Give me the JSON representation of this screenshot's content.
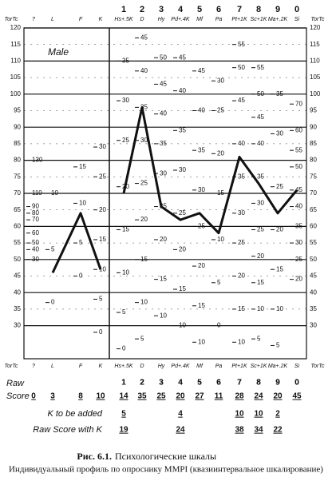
{
  "chart_data": {
    "type": "profile",
    "group": "Male",
    "axis_label": "TorTc",
    "ylim": [
      20,
      120
    ],
    "yticks": [
      30,
      35,
      40,
      45,
      50,
      55,
      60,
      65,
      70,
      75,
      80,
      85,
      90,
      95,
      100,
      105,
      110,
      115,
      120
    ],
    "grid": true,
    "line_color": "#111111",
    "validity": [
      {
        "name": "?",
        "raw": 0,
        "ticks": [
          {
            "raw": 130,
            "t": 80
          },
          {
            "raw": 110,
            "t": 70
          },
          {
            "raw": 90,
            "t": 66
          },
          {
            "raw": 80,
            "t": 64
          },
          {
            "raw": 70,
            "t": 62
          },
          {
            "raw": 60,
            "t": 58
          },
          {
            "raw": 50,
            "t": 55
          },
          {
            "raw": 40,
            "t": 53
          },
          {
            "raw": 30,
            "t": 50
          }
        ]
      },
      {
        "name": "L",
        "raw": 3,
        "t": 46,
        "ticks": [
          {
            "raw": 10,
            "t": 70
          },
          {
            "raw": 5,
            "t": 53
          },
          {
            "raw": 0,
            "t": 37
          }
        ]
      },
      {
        "name": "F",
        "raw": 8,
        "t": 64,
        "ticks": [
          {
            "raw": 15,
            "t": 78
          },
          {
            "raw": 10,
            "t": 67
          },
          {
            "raw": 5,
            "t": 55
          },
          {
            "raw": 0,
            "t": 45
          }
        ]
      },
      {
        "name": "K",
        "raw": 10,
        "t": 47,
        "ticks": [
          {
            "raw": 30,
            "t": 84
          },
          {
            "raw": 25,
            "t": 75
          },
          {
            "raw": 20,
            "t": 65
          },
          {
            "raw": 15,
            "t": 56
          },
          {
            "raw": 10,
            "t": 47
          },
          {
            "raw": 5,
            "t": 38
          },
          {
            "raw": 0,
            "t": 28
          }
        ]
      }
    ],
    "scales": [
      {
        "number": 1,
        "name": "Hs+.5K",
        "raw": 14,
        "k_added": 5,
        "raw_k": 19,
        "t": 70,
        "ticks": [
          {
            "raw": 35,
            "t": 110
          },
          {
            "raw": 30,
            "t": 98
          },
          {
            "raw": 25,
            "t": 86
          },
          {
            "raw": 20,
            "t": 72
          },
          {
            "raw": 15,
            "t": 59
          },
          {
            "raw": 10,
            "t": 46
          },
          {
            "raw": 5,
            "t": 34
          },
          {
            "raw": 0,
            "t": 23
          }
        ]
      },
      {
        "number": 2,
        "name": "D",
        "raw": 35,
        "k_added": null,
        "raw_k": null,
        "t": 96,
        "ticks": [
          {
            "raw": 45,
            "t": 117
          },
          {
            "raw": 40,
            "t": 107
          },
          {
            "raw": 35,
            "t": 96
          },
          {
            "raw": 30,
            "t": 86
          },
          {
            "raw": 25,
            "t": 73
          },
          {
            "raw": 20,
            "t": 62
          },
          {
            "raw": 15,
            "t": 50
          },
          {
            "raw": 10,
            "t": 37
          },
          {
            "raw": 5,
            "t": 26
          }
        ]
      },
      {
        "number": 3,
        "name": "Hy",
        "raw": 25,
        "k_added": null,
        "raw_k": null,
        "t": 66,
        "ticks": [
          {
            "raw": 50,
            "t": 111
          },
          {
            "raw": 45,
            "t": 103
          },
          {
            "raw": 40,
            "t": 94
          },
          {
            "raw": 35,
            "t": 85
          },
          {
            "raw": 30,
            "t": 76
          },
          {
            "raw": 25,
            "t": 66
          },
          {
            "raw": 20,
            "t": 56
          },
          {
            "raw": 15,
            "t": 44
          },
          {
            "raw": 10,
            "t": 33
          }
        ]
      },
      {
        "number": 4,
        "name": "Pd+.4K",
        "raw": 20,
        "k_added": 4,
        "raw_k": 24,
        "t": 62,
        "ticks": [
          {
            "raw": 45,
            "t": 111
          },
          {
            "raw": 40,
            "t": 101
          },
          {
            "raw": 35,
            "t": 89
          },
          {
            "raw": 30,
            "t": 77
          },
          {
            "raw": 25,
            "t": 64
          },
          {
            "raw": 20,
            "t": 53
          },
          {
            "raw": 15,
            "t": 41
          },
          {
            "raw": 10,
            "t": 30
          }
        ]
      },
      {
        "number": 5,
        "name": "Mf",
        "raw": 27,
        "k_added": null,
        "raw_k": null,
        "t": 64,
        "ticks": [
          {
            "raw": 45,
            "t": 107
          },
          {
            "raw": 40,
            "t": 95
          },
          {
            "raw": 35,
            "t": 83
          },
          {
            "raw": 30,
            "t": 71
          },
          {
            "raw": 25,
            "t": 60
          },
          {
            "raw": 20,
            "t": 48
          },
          {
            "raw": 15,
            "t": 36
          },
          {
            "raw": 10,
            "t": 25
          }
        ]
      },
      {
        "number": 6,
        "name": "Pa",
        "raw": 11,
        "k_added": null,
        "raw_k": null,
        "t": 58,
        "ticks": [
          {
            "raw": 30,
            "t": 104
          },
          {
            "raw": 25,
            "t": 95
          },
          {
            "raw": 20,
            "t": 82
          },
          {
            "raw": 15,
            "t": 70
          },
          {
            "raw": 10,
            "t": 56
          },
          {
            "raw": 5,
            "t": 43
          },
          {
            "raw": 0,
            "t": 30
          }
        ]
      },
      {
        "number": 7,
        "name": "Pt+1K",
        "raw": 28,
        "k_added": 10,
        "raw_k": 38,
        "t": 81,
        "ticks": [
          {
            "raw": 55,
            "t": 115
          },
          {
            "raw": 50,
            "t": 108
          },
          {
            "raw": 45,
            "t": 98
          },
          {
            "raw": 40,
            "t": 85
          },
          {
            "raw": 35,
            "t": 75
          },
          {
            "raw": 30,
            "t": 64
          },
          {
            "raw": 25,
            "t": 55
          },
          {
            "raw": 20,
            "t": 45
          },
          {
            "raw": 15,
            "t": 35
          },
          {
            "raw": 10,
            "t": 25
          }
        ]
      },
      {
        "number": 8,
        "name": "Sc+1K",
        "raw": 24,
        "k_added": 10,
        "raw_k": 34,
        "t": 73,
        "ticks": [
          {
            "raw": 55,
            "t": 108
          },
          {
            "raw": 50,
            "t": 100
          },
          {
            "raw": 45,
            "t": 93
          },
          {
            "raw": 40,
            "t": 85
          },
          {
            "raw": 35,
            "t": 75
          },
          {
            "raw": 30,
            "t": 67
          },
          {
            "raw": 25,
            "t": 59
          },
          {
            "raw": 20,
            "t": 51
          },
          {
            "raw": 15,
            "t": 43
          },
          {
            "raw": 10,
            "t": 35
          },
          {
            "raw": 5,
            "t": 26
          }
        ]
      },
      {
        "number": 9,
        "name": "Ma+.2K",
        "raw": 20,
        "k_added": 2,
        "raw_k": 22,
        "t": 64,
        "ticks": [
          {
            "raw": 35,
            "t": 100
          },
          {
            "raw": 30,
            "t": 88
          },
          {
            "raw": 25,
            "t": 72
          },
          {
            "raw": 20,
            "t": 59
          },
          {
            "raw": 15,
            "t": 47
          },
          {
            "raw": 10,
            "t": 35
          },
          {
            "raw": 5,
            "t": 24
          }
        ]
      },
      {
        "number": 0,
        "name": "Si",
        "raw": 45,
        "k_added": null,
        "raw_k": null,
        "t": 71,
        "ticks": [
          {
            "raw": 70,
            "t": 97
          },
          {
            "raw": 60,
            "t": 89
          },
          {
            "raw": 55,
            "t": 83
          },
          {
            "raw": 50,
            "t": 78
          },
          {
            "raw": 45,
            "t": 71
          },
          {
            "raw": 40,
            "t": 66
          },
          {
            "raw": 35,
            "t": 60
          },
          {
            "raw": 30,
            "t": 55
          },
          {
            "raw": 25,
            "t": 50
          },
          {
            "raw": 20,
            "t": 44
          }
        ]
      }
    ],
    "rows": {
      "raw": "Raw",
      "score": "Score",
      "k_added": "K to be added",
      "raw_k": "Raw Score with K"
    },
    "caption": {
      "label": "Рис. 6.1.",
      "title": "Психологические шкалы",
      "subtitle": "Индивидуальный профиль по опроснику MMPI (квазиинтервальное шкалирование)"
    }
  }
}
